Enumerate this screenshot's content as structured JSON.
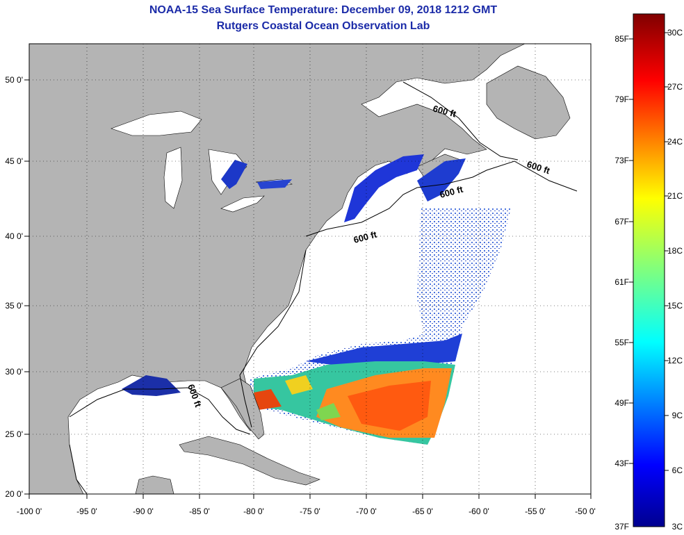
{
  "header": {
    "title": "NOAA-15 Sea Surface Temperature:  December 09, 2018 1212 GMT",
    "subtitle": "Rutgers Coastal Ocean Observation Lab"
  },
  "map": {
    "lon_ticks": [
      "-100 0'",
      "-95 0'",
      "-90 0'",
      "-85 0'",
      "-80 0'",
      "-75 0'",
      "-70 0'",
      "-65 0'",
      "-60 0'",
      "-55 0'",
      "-50 0'"
    ],
    "lat_ticks": [
      "50 0'",
      "45 0'",
      "40 0'",
      "35 0'",
      "30 0'",
      "25 0'",
      "20 0'"
    ],
    "contour_label": "600 ft",
    "colors": {
      "land": "#b4b4b4",
      "ocean": "#ffffff",
      "grid": "#000000"
    }
  },
  "colorbar": {
    "fahrenheit_labels": [
      "85F",
      "79F",
      "73F",
      "67F",
      "61F",
      "55F",
      "49F",
      "43F",
      "37F"
    ],
    "celsius_labels": [
      "30C",
      "27C",
      "24C",
      "21C",
      "18C",
      "15C",
      "12C",
      "9C",
      "6C",
      "3C"
    ],
    "colormap": "jet"
  }
}
